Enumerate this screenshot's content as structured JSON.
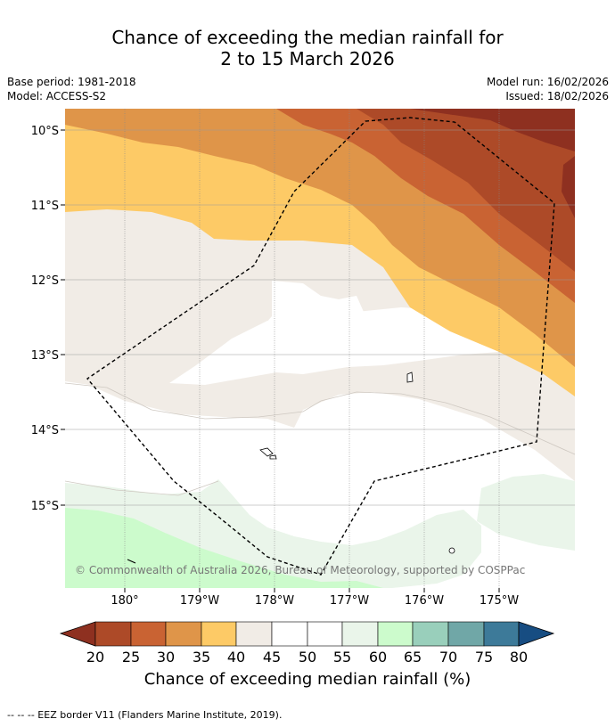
{
  "title": {
    "line1": "Chance of exceeding the median rainfall for",
    "line2": "2 to 15 March 2026"
  },
  "meta": {
    "base_period": "Base period: 1981-2018",
    "model": "Model: ACCESS-S2",
    "model_run": "Model run: 16/02/2026",
    "issued": "Issued: 18/02/2026"
  },
  "map": {
    "lat_labels": [
      "10°S",
      "11°S",
      "12°S",
      "13°S",
      "14°S",
      "15°S"
    ],
    "lon_labels": [
      "180°",
      "179°W",
      "178°W",
      "177°W",
      "176°W",
      "175°W"
    ],
    "copyright": "© Commonwealth of Australia 2026, Bureau of Meteorology, supported by COSPPac",
    "region_colors": {
      "c20": "#8e3020",
      "c25": "#ad4a28",
      "c30": "#c96333",
      "c35": "#df9549",
      "c40": "#fdca66",
      "c45": "#f1ece6",
      "c50": "#ffffff",
      "c55": "#ffffff",
      "c60": "#eaf5ea",
      "c65": "#ccfbcc",
      "c70": "#99cfbb",
      "c75": "#70a7a7",
      "c80": "#3d7a99",
      "over": "#174d82",
      "under": "#8e3020"
    }
  },
  "colorbar": {
    "ticks": [
      "20",
      "25",
      "30",
      "35",
      "40",
      "45",
      "50",
      "55",
      "60",
      "65",
      "70",
      "75",
      "80"
    ],
    "label": "Chance of exceeding median rainfall (%)"
  },
  "footer": "-- -- -- EEZ border V11 (Flanders Marine Institute, 2019)."
}
